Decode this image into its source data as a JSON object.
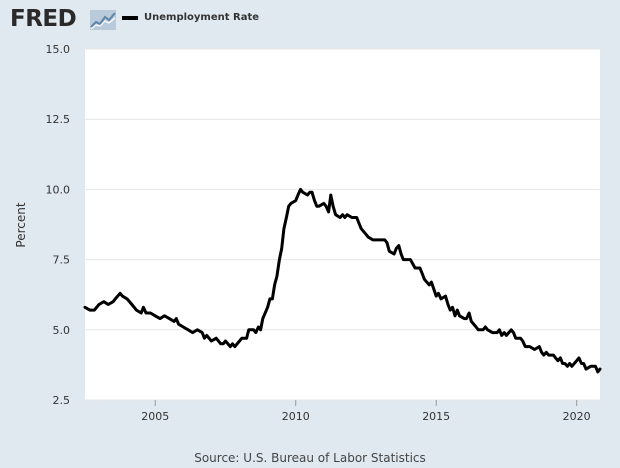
{
  "header": {
    "logo_text": "FRED",
    "logo_icon": "line-chart-icon",
    "legend_label": "Unemployment Rate"
  },
  "source": "Source: U.S. Bureau of Labor Statistics",
  "colors": {
    "background": "#e1e9f0",
    "plot_background": "#ffffff",
    "series": "#000000",
    "logo_accent": "#8aa9c4"
  },
  "chart_data": {
    "type": "line",
    "title": "",
    "xlabel": "",
    "ylabel": "Percent",
    "xlim": [
      2002.5,
      2020.83
    ],
    "ylim": [
      2.5,
      15.0
    ],
    "x_ticks": [
      2005,
      2010,
      2015,
      2020
    ],
    "y_ticks": [
      2.5,
      5.0,
      7.5,
      10.0,
      12.5,
      15.0
    ],
    "x_tick_labels": [
      "2005",
      "2010",
      "2015",
      "2020"
    ],
    "y_tick_labels": [
      "2.5",
      "5.0",
      "7.5",
      "10.0",
      "12.5",
      "15.0"
    ],
    "grid": "horizontal",
    "legend": "top-left",
    "series": [
      {
        "name": "Unemployment Rate",
        "points": [
          [
            2002.5,
            5.8
          ],
          [
            2002.67,
            5.7
          ],
          [
            2002.83,
            5.7
          ],
          [
            2003.0,
            5.9
          ],
          [
            2003.17,
            6.0
          ],
          [
            2003.33,
            5.9
          ],
          [
            2003.5,
            6.0
          ],
          [
            2003.58,
            6.1
          ],
          [
            2003.75,
            6.3
          ],
          [
            2003.83,
            6.2
          ],
          [
            2004.0,
            6.1
          ],
          [
            2004.17,
            5.9
          ],
          [
            2004.33,
            5.7
          ],
          [
            2004.5,
            5.6
          ],
          [
            2004.58,
            5.8
          ],
          [
            2004.67,
            5.6
          ],
          [
            2004.83,
            5.6
          ],
          [
            2005.0,
            5.5
          ],
          [
            2005.17,
            5.4
          ],
          [
            2005.33,
            5.5
          ],
          [
            2005.5,
            5.4
          ],
          [
            2005.67,
            5.3
          ],
          [
            2005.75,
            5.4
          ],
          [
            2005.83,
            5.2
          ],
          [
            2006.0,
            5.1
          ],
          [
            2006.17,
            5.0
          ],
          [
            2006.33,
            4.9
          ],
          [
            2006.5,
            5.0
          ],
          [
            2006.67,
            4.9
          ],
          [
            2006.75,
            4.7
          ],
          [
            2006.83,
            4.8
          ],
          [
            2007.0,
            4.6
          ],
          [
            2007.17,
            4.7
          ],
          [
            2007.25,
            4.6
          ],
          [
            2007.33,
            4.5
          ],
          [
            2007.42,
            4.5
          ],
          [
            2007.5,
            4.6
          ],
          [
            2007.67,
            4.4
          ],
          [
            2007.75,
            4.5
          ],
          [
            2007.83,
            4.4
          ],
          [
            2008.0,
            4.6
          ],
          [
            2008.08,
            4.7
          ],
          [
            2008.25,
            4.7
          ],
          [
            2008.33,
            5.0
          ],
          [
            2008.5,
            5.0
          ],
          [
            2008.58,
            4.9
          ],
          [
            2008.67,
            5.1
          ],
          [
            2008.75,
            5.0
          ],
          [
            2008.83,
            5.4
          ],
          [
            2009.0,
            5.8
          ],
          [
            2009.08,
            6.1
          ],
          [
            2009.17,
            6.1
          ],
          [
            2009.25,
            6.6
          ],
          [
            2009.33,
            6.9
          ],
          [
            2009.42,
            7.5
          ],
          [
            2009.5,
            7.9
          ],
          [
            2009.58,
            8.6
          ],
          [
            2009.67,
            9.0
          ],
          [
            2009.75,
            9.4
          ],
          [
            2009.83,
            9.5
          ],
          [
            2010.0,
            9.6
          ],
          [
            2010.08,
            9.8
          ],
          [
            2010.17,
            10.0
          ],
          [
            2010.25,
            9.9
          ],
          [
            2010.42,
            9.8
          ],
          [
            2010.5,
            9.9
          ],
          [
            2010.58,
            9.9
          ],
          [
            2010.67,
            9.6
          ],
          [
            2010.75,
            9.4
          ],
          [
            2010.83,
            9.4
          ],
          [
            2011.0,
            9.5
          ],
          [
            2011.08,
            9.4
          ],
          [
            2011.17,
            9.2
          ],
          [
            2011.25,
            9.8
          ],
          [
            2011.33,
            9.4
          ],
          [
            2011.42,
            9.1
          ],
          [
            2011.58,
            9.0
          ],
          [
            2011.67,
            9.1
          ],
          [
            2011.75,
            9.0
          ],
          [
            2011.83,
            9.1
          ],
          [
            2012.0,
            9.0
          ],
          [
            2012.17,
            9.0
          ],
          [
            2012.25,
            8.8
          ],
          [
            2012.33,
            8.6
          ],
          [
            2012.5,
            8.4
          ],
          [
            2012.58,
            8.3
          ],
          [
            2012.75,
            8.2
          ],
          [
            2012.92,
            8.2
          ],
          [
            2013.17,
            8.2
          ],
          [
            2013.25,
            8.1
          ],
          [
            2013.33,
            7.8
          ],
          [
            2013.5,
            7.7
          ],
          [
            2013.58,
            7.9
          ],
          [
            2013.67,
            8.0
          ],
          [
            2013.75,
            7.7
          ],
          [
            2013.83,
            7.5
          ],
          [
            2014.0,
            7.5
          ],
          [
            2014.08,
            7.5
          ],
          [
            2014.25,
            7.2
          ],
          [
            2014.42,
            7.2
          ],
          [
            2014.5,
            7.0
          ],
          [
            2014.58,
            6.8
          ],
          [
            2014.75,
            6.6
          ],
          [
            2014.83,
            6.7
          ],
          [
            2015.0,
            6.2
          ],
          [
            2015.08,
            6.3
          ],
          [
            2015.17,
            6.1
          ],
          [
            2015.33,
            6.2
          ],
          [
            2015.42,
            5.9
          ],
          [
            2015.5,
            5.7
          ],
          [
            2015.58,
            5.8
          ],
          [
            2015.67,
            5.5
          ],
          [
            2015.75,
            5.7
          ],
          [
            2015.83,
            5.5
          ],
          [
            2016.0,
            5.4
          ],
          [
            2016.08,
            5.4
          ],
          [
            2016.17,
            5.6
          ],
          [
            2016.25,
            5.3
          ],
          [
            2016.42,
            5.1
          ],
          [
            2016.5,
            5.0
          ],
          [
            2016.67,
            5.0
          ],
          [
            2016.75,
            5.1
          ],
          [
            2016.83,
            5.0
          ],
          [
            2017.0,
            4.9
          ],
          [
            2017.17,
            4.9
          ],
          [
            2017.25,
            5.0
          ],
          [
            2017.33,
            4.8
          ],
          [
            2017.42,
            4.9
          ],
          [
            2017.5,
            4.8
          ],
          [
            2017.67,
            5.0
          ],
          [
            2017.75,
            4.9
          ],
          [
            2017.83,
            4.7
          ],
          [
            2018.0,
            4.7
          ],
          [
            2018.08,
            4.6
          ],
          [
            2018.17,
            4.4
          ],
          [
            2018.33,
            4.4
          ],
          [
            2018.5,
            4.3
          ],
          [
            2018.67,
            4.4
          ],
          [
            2018.75,
            4.2
          ],
          [
            2018.83,
            4.1
          ],
          [
            2018.92,
            4.2
          ],
          [
            2019.0,
            4.1
          ],
          [
            2019.17,
            4.1
          ],
          [
            2019.25,
            4.0
          ],
          [
            2019.33,
            3.9
          ],
          [
            2019.42,
            4.0
          ],
          [
            2019.5,
            3.8
          ],
          [
            2019.58,
            3.8
          ],
          [
            2019.67,
            3.7
          ],
          [
            2019.75,
            3.8
          ],
          [
            2019.83,
            3.7
          ],
          [
            2020.0,
            3.9
          ],
          [
            2020.08,
            4.0
          ],
          [
            2020.17,
            3.8
          ],
          [
            2020.25,
            3.8
          ],
          [
            2020.33,
            3.6
          ],
          [
            2020.5,
            3.7
          ],
          [
            2020.67,
            3.7
          ],
          [
            2020.75,
            3.5
          ],
          [
            2020.83,
            3.6
          ]
        ]
      }
    ]
  }
}
